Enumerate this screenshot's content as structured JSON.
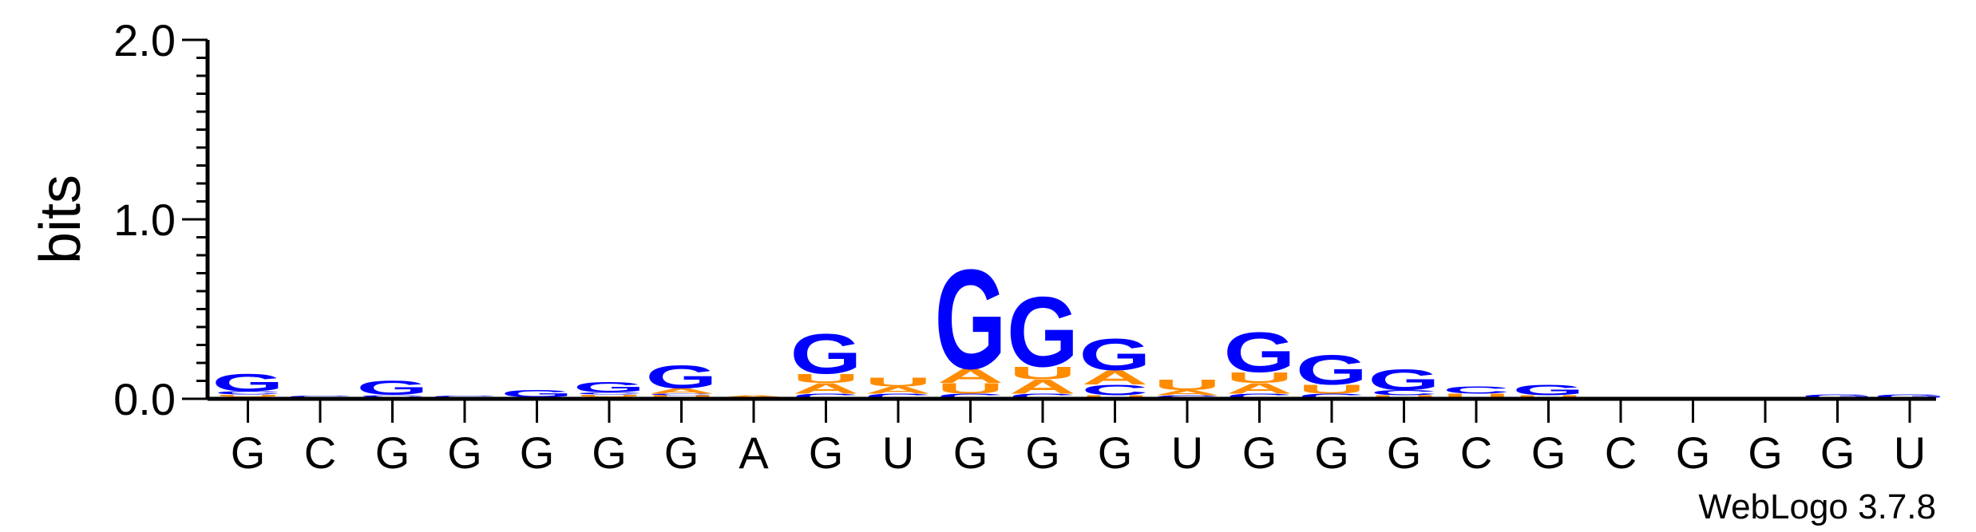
{
  "chart_data": {
    "type": "sequence-logo",
    "ylabel": "bits",
    "ylim": [
      0,
      2.0
    ],
    "yticks": [
      "0.0",
      "1.0",
      "2.0"
    ],
    "ytick_values": [
      0,
      1,
      2
    ],
    "ytick_minor_step": 0.1,
    "consensus": [
      "G",
      "C",
      "G",
      "G",
      "G",
      "G",
      "G",
      "A",
      "G",
      "U",
      "G",
      "G",
      "G",
      "U",
      "G",
      "G",
      "G",
      "C",
      "G",
      "C",
      "G",
      "G",
      "G",
      "U"
    ],
    "colors": {
      "G": "#0000ff",
      "U": "#ff8c00",
      "A": "#ff8c00",
      "C": "#0000ff"
    },
    "stacks": [
      [
        {
          "l": "A",
          "h": 0.012
        },
        {
          "l": "U",
          "h": 0.012
        },
        {
          "l": "C",
          "h": 0.018
        },
        {
          "l": "G",
          "h": 0.1
        }
      ],
      [
        {
          "l": "U",
          "h": 0.006
        },
        {
          "l": "C",
          "h": 0.012
        }
      ],
      [
        {
          "l": "A",
          "h": 0.01
        },
        {
          "l": "C",
          "h": 0.012
        },
        {
          "l": "G",
          "h": 0.08
        }
      ],
      [
        {
          "l": "U",
          "h": 0.006
        },
        {
          "l": "C",
          "h": 0.012
        }
      ],
      [
        {
          "l": "C",
          "h": 0.008
        },
        {
          "l": "G",
          "h": 0.04
        }
      ],
      [
        {
          "l": "A",
          "h": 0.012
        },
        {
          "l": "U",
          "h": 0.012
        },
        {
          "l": "C",
          "h": 0.012
        },
        {
          "l": "G",
          "h": 0.06
        }
      ],
      [
        {
          "l": "U",
          "h": 0.02
        },
        {
          "l": "C",
          "h": 0.01
        },
        {
          "l": "A",
          "h": 0.03
        },
        {
          "l": "G",
          "h": 0.13
        }
      ],
      [
        {
          "l": "U",
          "h": 0.008
        },
        {
          "l": "A",
          "h": 0.012
        }
      ],
      [
        {
          "l": "C",
          "h": 0.03
        },
        {
          "l": "A",
          "h": 0.06
        },
        {
          "l": "U",
          "h": 0.05
        },
        {
          "l": "G",
          "h": 0.23
        }
      ],
      [
        {
          "l": "C",
          "h": 0.03
        },
        {
          "l": "A",
          "h": 0.04
        },
        {
          "l": "U",
          "h": 0.05
        }
      ],
      [
        {
          "l": "C",
          "h": 0.03
        },
        {
          "l": "U",
          "h": 0.06
        },
        {
          "l": "A",
          "h": 0.08
        },
        {
          "l": "G",
          "h": 0.57
        }
      ],
      [
        {
          "l": "C",
          "h": 0.03
        },
        {
          "l": "A",
          "h": 0.08
        },
        {
          "l": "U",
          "h": 0.07
        },
        {
          "l": "G",
          "h": 0.4
        }
      ],
      [
        {
          "l": "U",
          "h": 0.02
        },
        {
          "l": "C",
          "h": 0.06
        },
        {
          "l": "A",
          "h": 0.08
        },
        {
          "l": "G",
          "h": 0.18
        }
      ],
      [
        {
          "l": "C",
          "h": 0.02
        },
        {
          "l": "A",
          "h": 0.03
        },
        {
          "l": "U",
          "h": 0.06
        }
      ],
      [
        {
          "l": "C",
          "h": 0.03
        },
        {
          "l": "A",
          "h": 0.06
        },
        {
          "l": "U",
          "h": 0.06
        },
        {
          "l": "G",
          "h": 0.23
        }
      ],
      [
        {
          "l": "C",
          "h": 0.03
        },
        {
          "l": "U",
          "h": 0.05
        },
        {
          "l": "G",
          "h": 0.17
        }
      ],
      [
        {
          "l": "U",
          "h": 0.02
        },
        {
          "l": "C",
          "h": 0.03
        },
        {
          "l": "G",
          "h": 0.12
        }
      ],
      [
        {
          "l": "U",
          "h": 0.03
        },
        {
          "l": "C",
          "h": 0.04
        }
      ],
      [
        {
          "l": "U",
          "h": 0.02
        },
        {
          "l": "G",
          "h": 0.06
        }
      ],
      [
        {
          "l": "U",
          "h": 0.006
        }
      ],
      [
        {
          "l": "G",
          "h": 0.004
        }
      ],
      [
        {
          "l": "G",
          "h": 0.004
        }
      ],
      [
        {
          "l": "U",
          "h": 0.004
        },
        {
          "l": "G",
          "h": 0.02
        }
      ],
      [
        {
          "l": "U",
          "h": 0.004
        },
        {
          "l": "G",
          "h": 0.02
        }
      ]
    ]
  },
  "credit": "WebLogo 3.7.8"
}
